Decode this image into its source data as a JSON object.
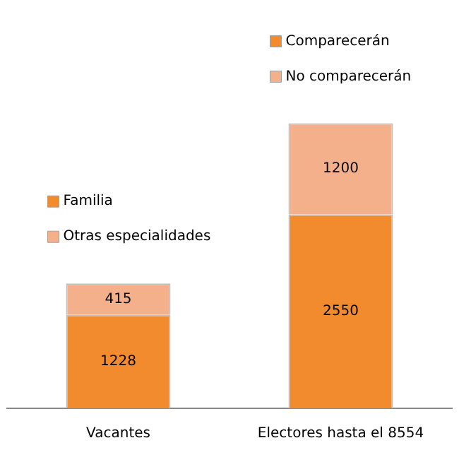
{
  "chart_data": {
    "type": "bar",
    "stacked": true,
    "data_labels": true,
    "legend": "top",
    "grid": false,
    "categories": [
      "Vacantes",
      "Electores hasta el 8554"
    ],
    "series": [
      {
        "name": "Familia",
        "color": "#f28a2e",
        "values": [
          1228,
          null
        ]
      },
      {
        "name": "Otras especialidades",
        "color": "#f4b08a",
        "values": [
          415,
          null
        ]
      },
      {
        "name": "Comparecerán",
        "color": "#f28a2e",
        "values": [
          null,
          2550
        ]
      },
      {
        "name": "No comparecerán",
        "color": "#f4b08a",
        "values": [
          null,
          1200
        ]
      }
    ]
  }
}
